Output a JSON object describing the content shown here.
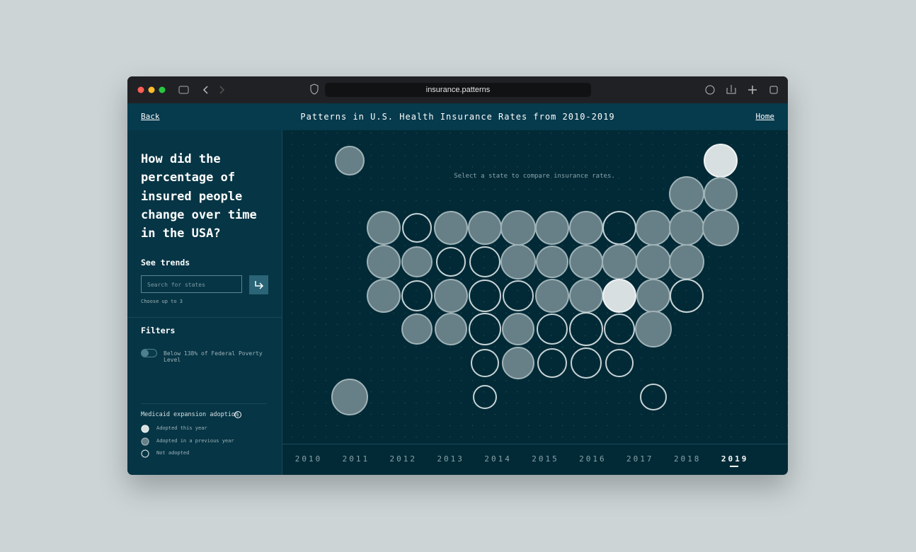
{
  "browser": {
    "url": "insurance.patterns"
  },
  "header": {
    "back": "Back",
    "title": "Patterns in U.S. Health Insurance Rates from 2010-2019",
    "home": "Home"
  },
  "sidebar": {
    "question": "How did the percentage of insured people change over time in the USA?",
    "trends_heading": "See trends",
    "search_placeholder": "Search for states",
    "search_hint": "Choose up to 3",
    "filters_heading": "Filters",
    "filter_label": "Below 138% of Federal Poverty Level",
    "legend_title": "Medicaid expansion adoption",
    "legend": [
      "Adopted this year",
      "Adopted in a previous year",
      "Not adopted"
    ]
  },
  "map": {
    "prompt": "Select a state to compare insurance rates."
  },
  "timeline": {
    "years": [
      "2010",
      "2011",
      "2012",
      "2013",
      "2014",
      "2015",
      "2016",
      "2017",
      "2018",
      "2019"
    ],
    "selected": 9
  }
}
